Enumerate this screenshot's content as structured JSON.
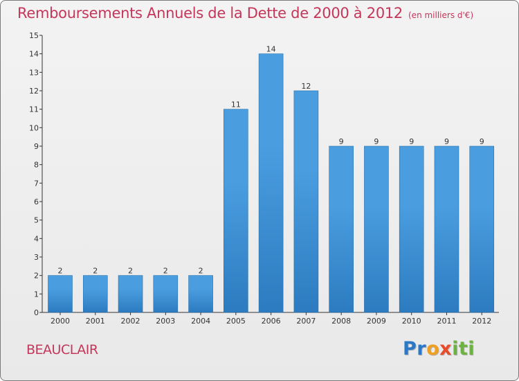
{
  "chart_data": {
    "type": "bar",
    "title": "Remboursements Annuels de la Dette de 2000 à 2012",
    "subtitle": "(en milliers d'€)",
    "xlabel": "",
    "ylabel": "",
    "categories": [
      "2000",
      "2001",
      "2002",
      "2003",
      "2004",
      "2005",
      "2006",
      "2007",
      "2008",
      "2009",
      "2010",
      "2011",
      "2012"
    ],
    "values": [
      2,
      2,
      2,
      2,
      2,
      11,
      14,
      12,
      9,
      9,
      9,
      9,
      9
    ],
    "ylim": [
      0,
      15
    ],
    "yticks": [
      0,
      1,
      2,
      3,
      4,
      5,
      6,
      7,
      8,
      9,
      10,
      11,
      12,
      13,
      14,
      15
    ],
    "grid": false,
    "bar_color": "#4a9ee0",
    "bar_color_dark": "#2c7bc0"
  },
  "footer": {
    "commune": "BEAUCLAIR",
    "logo_parts": [
      "Pr",
      "o",
      "x",
      "iti"
    ],
    "title_color": "#c4365a"
  }
}
